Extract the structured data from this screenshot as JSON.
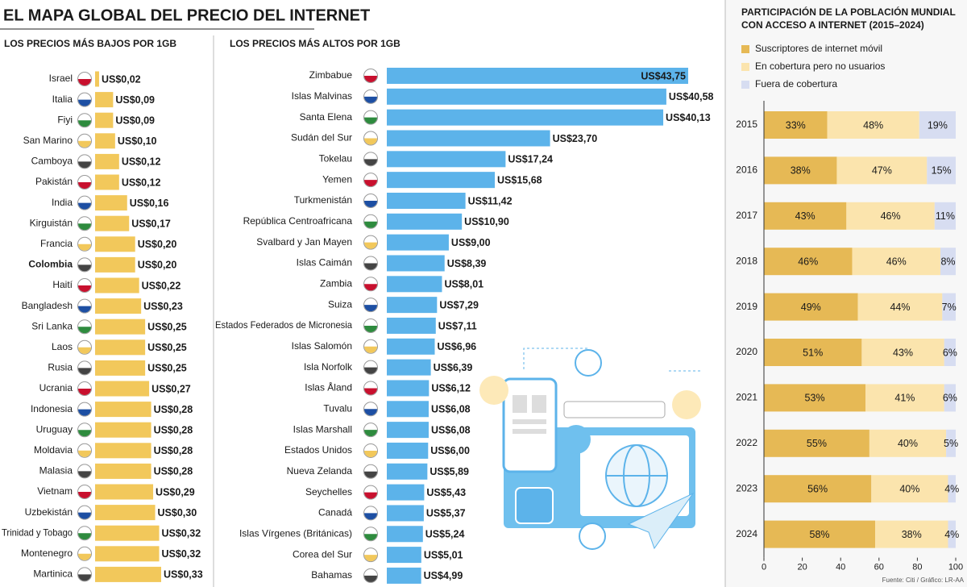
{
  "title": "EL MAPA GLOBAL DEL PRECIO DEL INTERNET",
  "source": "Fuente: Citi / Gráfico: LR-AA",
  "chart_data": [
    {
      "type": "bar",
      "orientation": "horizontal",
      "title": "LOS PRECIOS MÁS BAJOS POR 1GB",
      "categories": [
        "Israel",
        "Italia",
        "Fiyi",
        "San Marino",
        "Camboya",
        "Pakistán",
        "India",
        "Kirguistán",
        "Francia",
        "Colombia",
        "Haití",
        "Bangladesh",
        "Sri Lanka",
        "Laos",
        "Rusia",
        "Ucrania",
        "Indonesia",
        "Uruguay",
        "Moldavia",
        "Malasia",
        "Vietnam",
        "Uzbekistán",
        "Trinidad y Tobago",
        "Montenegro",
        "Martinica"
      ],
      "values": [
        0.02,
        0.09,
        0.09,
        0.1,
        0.12,
        0.12,
        0.16,
        0.17,
        0.2,
        0.2,
        0.22,
        0.23,
        0.25,
        0.25,
        0.25,
        0.27,
        0.28,
        0.28,
        0.28,
        0.28,
        0.29,
        0.3,
        0.32,
        0.32,
        0.33
      ],
      "value_labels": [
        "US$0,02",
        "US$0,09",
        "US$0,09",
        "US$0,10",
        "US$0,12",
        "US$0,12",
        "US$0,16",
        "US$0,17",
        "US$0,20",
        "US$0,20",
        "US$0,22",
        "US$0,23",
        "US$0,25",
        "US$0,25",
        "US$0,25",
        "US$0,27",
        "US$0,28",
        "US$0,28",
        "US$0,28",
        "US$0,28",
        "US$0,29",
        "US$0,30",
        "US$0,32",
        "US$0,32",
        "US$0,33"
      ],
      "color": "#f2c85b",
      "bold_category_index": 9
    },
    {
      "type": "bar",
      "orientation": "horizontal",
      "title": "LOS PRECIOS MÁS ALTOS POR 1GB",
      "categories": [
        "Zimbabue",
        "Islas Malvinas",
        "Santa Elena",
        "Sudán del Sur",
        "Tokelau",
        "Yemen",
        "Turkmenistán",
        "República Centroafricana",
        "Svalbard y Jan Mayen",
        "Islas Caimán",
        "Zambia",
        "Suiza",
        "Estados Federados de Micronesia",
        "Islas Salomón",
        "Isla Norfolk",
        "Islas Åland",
        "Tuvalu",
        "Islas Marshall",
        "Estados Unidos",
        "Nueva Zelanda",
        "Seychelles",
        "Canadá",
        "Islas Vírgenes (Británicas)",
        "Corea del Sur",
        "Bahamas"
      ],
      "values": [
        43.75,
        40.58,
        40.13,
        23.7,
        17.24,
        15.68,
        11.42,
        10.9,
        9.0,
        8.39,
        8.01,
        7.29,
        7.11,
        6.96,
        6.39,
        6.12,
        6.08,
        6.08,
        6.0,
        5.89,
        5.43,
        5.37,
        5.24,
        5.01,
        4.99
      ],
      "value_labels": [
        "US$43,75",
        "US$40,58",
        "US$40,13",
        "US$23,70",
        "US$17,24",
        "US$15,68",
        "US$11,42",
        "US$10,90",
        "US$9,00",
        "US$8,39",
        "US$8,01",
        "US$7,29",
        "US$7,11",
        "US$6,96",
        "US$6,39",
        "US$6,12",
        "US$6,08",
        "US$6,08",
        "US$6,00",
        "US$5,89",
        "US$5,43",
        "US$5,37",
        "US$5,24",
        "US$5,01",
        "US$4,99"
      ],
      "color": "#5cb3ea"
    },
    {
      "type": "stacked_bar",
      "orientation": "horizontal",
      "title": [
        "PARTICIPACIÓN DE LA POBLACIÓN MUNDIAL",
        "CON ACCESO A INTERNET (2015–2024)"
      ],
      "categories": [
        "2015",
        "2016",
        "2017",
        "2018",
        "2019",
        "2020",
        "2021",
        "2022",
        "2023",
        "2024"
      ],
      "series": [
        {
          "name": "Suscriptores de internet móvil",
          "color": "#e6b955",
          "values": [
            33,
            38,
            43,
            46,
            49,
            51,
            53,
            55,
            56,
            58
          ],
          "value_labels": [
            "33%",
            "38%",
            "43%",
            "46%",
            "49%",
            "51%",
            "53%",
            "55%",
            "56%",
            "58%"
          ]
        },
        {
          "name": "En cobertura pero no usuarios",
          "color": "#fbe4ad",
          "values": [
            48,
            47,
            46,
            46,
            44,
            43,
            41,
            40,
            40,
            38
          ],
          "value_labels": [
            "48%",
            "47%",
            "46%",
            "46%",
            "44%",
            "43%",
            "41%",
            "40%",
            "40%",
            "38%"
          ]
        },
        {
          "name": "Fuera de cobertura",
          "color": "#d7ddf1",
          "values": [
            19,
            15,
            11,
            8,
            7,
            6,
            6,
            5,
            4,
            4
          ],
          "value_labels": [
            "19%",
            "15%",
            "11%",
            "8%",
            "7%",
            "6%",
            "6%",
            "5%",
            "4%",
            "4%"
          ]
        }
      ],
      "xlim": [
        0,
        100
      ],
      "xticks": [
        0,
        20,
        40,
        60,
        80,
        100
      ],
      "legend": "top-left"
    }
  ]
}
